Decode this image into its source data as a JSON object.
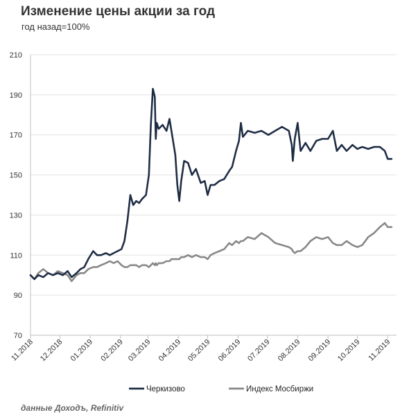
{
  "title": "Изменение цены акции за год",
  "subtitle": "год назад=100%",
  "source": "данные Доходъ, Refinitiv",
  "chart_data": {
    "type": "line",
    "ylim": [
      70,
      210
    ],
    "yticks": [
      70,
      90,
      110,
      130,
      150,
      170,
      190,
      210
    ],
    "xlim": [
      "2018-11-01",
      "2019-11-10"
    ],
    "xticks": [
      {
        "date": "2018-11-01",
        "label": "11.2018"
      },
      {
        "date": "2018-12-01",
        "label": "12.2018"
      },
      {
        "date": "2019-01-01",
        "label": "01.2019"
      },
      {
        "date": "2019-02-01",
        "label": "02.2019"
      },
      {
        "date": "2019-03-01",
        "label": "03.2019"
      },
      {
        "date": "2019-04-01",
        "label": "04.2019"
      },
      {
        "date": "2019-05-01",
        "label": "05.2019"
      },
      {
        "date": "2019-06-01",
        "label": "06.2019"
      },
      {
        "date": "2019-07-01",
        "label": "07.2019"
      },
      {
        "date": "2019-08-01",
        "label": "08.2019"
      },
      {
        "date": "2019-09-01",
        "label": "09.2019"
      },
      {
        "date": "2019-10-01",
        "label": "10.2019"
      },
      {
        "date": "2019-11-01",
        "label": "11.2019"
      }
    ],
    "legend_position": "bottom",
    "series": [
      {
        "name": "Черкизово",
        "color": "#1f2d44",
        "points": [
          [
            "2018-11-01",
            100
          ],
          [
            "2018-11-05",
            98
          ],
          [
            "2018-11-09",
            100
          ],
          [
            "2018-11-14",
            99
          ],
          [
            "2018-11-19",
            101
          ],
          [
            "2018-11-24",
            100
          ],
          [
            "2018-11-29",
            101
          ],
          [
            "2018-12-04",
            100
          ],
          [
            "2018-12-09",
            102
          ],
          [
            "2018-12-13",
            99
          ],
          [
            "2018-12-18",
            101
          ],
          [
            "2018-12-22",
            103
          ],
          [
            "2018-12-26",
            104
          ],
          [
            "2018-12-30",
            108
          ],
          [
            "2019-01-04",
            112
          ],
          [
            "2019-01-08",
            110
          ],
          [
            "2019-01-12",
            110
          ],
          [
            "2019-01-17",
            111
          ],
          [
            "2019-01-21",
            110
          ],
          [
            "2019-01-25",
            111
          ],
          [
            "2019-01-29",
            112
          ],
          [
            "2019-02-02",
            113
          ],
          [
            "2019-02-05",
            117
          ],
          [
            "2019-02-08",
            127
          ],
          [
            "2019-02-11",
            140
          ],
          [
            "2019-02-14",
            135
          ],
          [
            "2019-02-17",
            137
          ],
          [
            "2019-02-20",
            136
          ],
          [
            "2019-02-23",
            138
          ],
          [
            "2019-02-27",
            140
          ],
          [
            "2019-03-02",
            150
          ],
          [
            "2019-03-04",
            175
          ],
          [
            "2019-03-06",
            193
          ],
          [
            "2019-03-08",
            189
          ],
          [
            "2019-03-09",
            168
          ],
          [
            "2019-03-10",
            176
          ],
          [
            "2019-03-12",
            173
          ],
          [
            "2019-03-16",
            175
          ],
          [
            "2019-03-20",
            172
          ],
          [
            "2019-03-23",
            178
          ],
          [
            "2019-03-25",
            172
          ],
          [
            "2019-03-29",
            160
          ],
          [
            "2019-03-31",
            145
          ],
          [
            "2019-04-02",
            137
          ],
          [
            "2019-04-04",
            147
          ],
          [
            "2019-04-07",
            157
          ],
          [
            "2019-04-11",
            156
          ],
          [
            "2019-04-15",
            150
          ],
          [
            "2019-04-19",
            153
          ],
          [
            "2019-04-24",
            146
          ],
          [
            "2019-04-28",
            147
          ],
          [
            "2019-05-01",
            140
          ],
          [
            "2019-05-04",
            145
          ],
          [
            "2019-05-08",
            145
          ],
          [
            "2019-05-13",
            147
          ],
          [
            "2019-05-18",
            148
          ],
          [
            "2019-05-23",
            152
          ],
          [
            "2019-05-26",
            154
          ],
          [
            "2019-05-30",
            162
          ],
          [
            "2019-06-02",
            167
          ],
          [
            "2019-06-04",
            176
          ],
          [
            "2019-06-06",
            169
          ],
          [
            "2019-06-11",
            172
          ],
          [
            "2019-06-18",
            171
          ],
          [
            "2019-06-25",
            172
          ],
          [
            "2019-07-02",
            170
          ],
          [
            "2019-07-09",
            172
          ],
          [
            "2019-07-16",
            174
          ],
          [
            "2019-07-23",
            172
          ],
          [
            "2019-07-26",
            165
          ],
          [
            "2019-07-27",
            157
          ],
          [
            "2019-07-29",
            168
          ],
          [
            "2019-08-01",
            176
          ],
          [
            "2019-08-04",
            162
          ],
          [
            "2019-08-09",
            166
          ],
          [
            "2019-08-14",
            162
          ],
          [
            "2019-08-20",
            167
          ],
          [
            "2019-08-26",
            168
          ],
          [
            "2019-09-01",
            168
          ],
          [
            "2019-09-06",
            172
          ],
          [
            "2019-09-10",
            162
          ],
          [
            "2019-09-15",
            165
          ],
          [
            "2019-09-20",
            162
          ],
          [
            "2019-09-26",
            165
          ],
          [
            "2019-10-01",
            163
          ],
          [
            "2019-10-06",
            164
          ],
          [
            "2019-10-12",
            163
          ],
          [
            "2019-10-18",
            164
          ],
          [
            "2019-10-24",
            164
          ],
          [
            "2019-10-29",
            162
          ],
          [
            "2019-11-01",
            158
          ],
          [
            "2019-11-05",
            158
          ]
        ]
      },
      {
        "name": "Индекс Мосбиржи",
        "color": "#888888",
        "points": [
          [
            "2018-11-01",
            100
          ],
          [
            "2018-11-05",
            98
          ],
          [
            "2018-11-09",
            101
          ],
          [
            "2018-11-14",
            103
          ],
          [
            "2018-11-19",
            101
          ],
          [
            "2018-11-24",
            100
          ],
          [
            "2018-11-29",
            102
          ],
          [
            "2018-12-04",
            101
          ],
          [
            "2018-12-09",
            100
          ],
          [
            "2018-12-13",
            97
          ],
          [
            "2018-12-18",
            100
          ],
          [
            "2018-12-22",
            101
          ],
          [
            "2018-12-26",
            101
          ],
          [
            "2018-12-30",
            103
          ],
          [
            "2019-01-04",
            104
          ],
          [
            "2019-01-08",
            104
          ],
          [
            "2019-01-12",
            105
          ],
          [
            "2019-01-17",
            106
          ],
          [
            "2019-01-21",
            107
          ],
          [
            "2019-01-25",
            106
          ],
          [
            "2019-01-29",
            107
          ],
          [
            "2019-02-02",
            105
          ],
          [
            "2019-02-05",
            104
          ],
          [
            "2019-02-08",
            104
          ],
          [
            "2019-02-11",
            105
          ],
          [
            "2019-02-14",
            105
          ],
          [
            "2019-02-17",
            105
          ],
          [
            "2019-02-20",
            104
          ],
          [
            "2019-02-23",
            105
          ],
          [
            "2019-02-27",
            105
          ],
          [
            "2019-03-02",
            104
          ],
          [
            "2019-03-04",
            105
          ],
          [
            "2019-03-06",
            106
          ],
          [
            "2019-03-08",
            105
          ],
          [
            "2019-03-09",
            106
          ],
          [
            "2019-03-10",
            105
          ],
          [
            "2019-03-12",
            106
          ],
          [
            "2019-03-16",
            106
          ],
          [
            "2019-03-20",
            107
          ],
          [
            "2019-03-23",
            107
          ],
          [
            "2019-03-25",
            108
          ],
          [
            "2019-03-29",
            108
          ],
          [
            "2019-03-31",
            108
          ],
          [
            "2019-04-02",
            108
          ],
          [
            "2019-04-04",
            109
          ],
          [
            "2019-04-07",
            109
          ],
          [
            "2019-04-11",
            110
          ],
          [
            "2019-04-15",
            109
          ],
          [
            "2019-04-19",
            110
          ],
          [
            "2019-04-24",
            109
          ],
          [
            "2019-04-28",
            109
          ],
          [
            "2019-05-01",
            108
          ],
          [
            "2019-05-04",
            110
          ],
          [
            "2019-05-08",
            111
          ],
          [
            "2019-05-13",
            112
          ],
          [
            "2019-05-18",
            113
          ],
          [
            "2019-05-23",
            116
          ],
          [
            "2019-05-26",
            115
          ],
          [
            "2019-05-30",
            117
          ],
          [
            "2019-06-02",
            116
          ],
          [
            "2019-06-04",
            117
          ],
          [
            "2019-06-06",
            117
          ],
          [
            "2019-06-11",
            119
          ],
          [
            "2019-06-18",
            118
          ],
          [
            "2019-06-25",
            121
          ],
          [
            "2019-07-02",
            119
          ],
          [
            "2019-07-09",
            116
          ],
          [
            "2019-07-16",
            115
          ],
          [
            "2019-07-23",
            114
          ],
          [
            "2019-07-26",
            113
          ],
          [
            "2019-07-27",
            112
          ],
          [
            "2019-07-29",
            111
          ],
          [
            "2019-08-01",
            112
          ],
          [
            "2019-08-04",
            112
          ],
          [
            "2019-08-09",
            114
          ],
          [
            "2019-08-14",
            117
          ],
          [
            "2019-08-20",
            119
          ],
          [
            "2019-08-26",
            118
          ],
          [
            "2019-09-01",
            119
          ],
          [
            "2019-09-06",
            116
          ],
          [
            "2019-09-10",
            115
          ],
          [
            "2019-09-15",
            115
          ],
          [
            "2019-09-20",
            117
          ],
          [
            "2019-09-26",
            115
          ],
          [
            "2019-10-01",
            114
          ],
          [
            "2019-10-06",
            115
          ],
          [
            "2019-10-12",
            119
          ],
          [
            "2019-10-18",
            121
          ],
          [
            "2019-10-24",
            124
          ],
          [
            "2019-10-29",
            126
          ],
          [
            "2019-11-01",
            124
          ],
          [
            "2019-11-05",
            124
          ]
        ]
      }
    ]
  }
}
